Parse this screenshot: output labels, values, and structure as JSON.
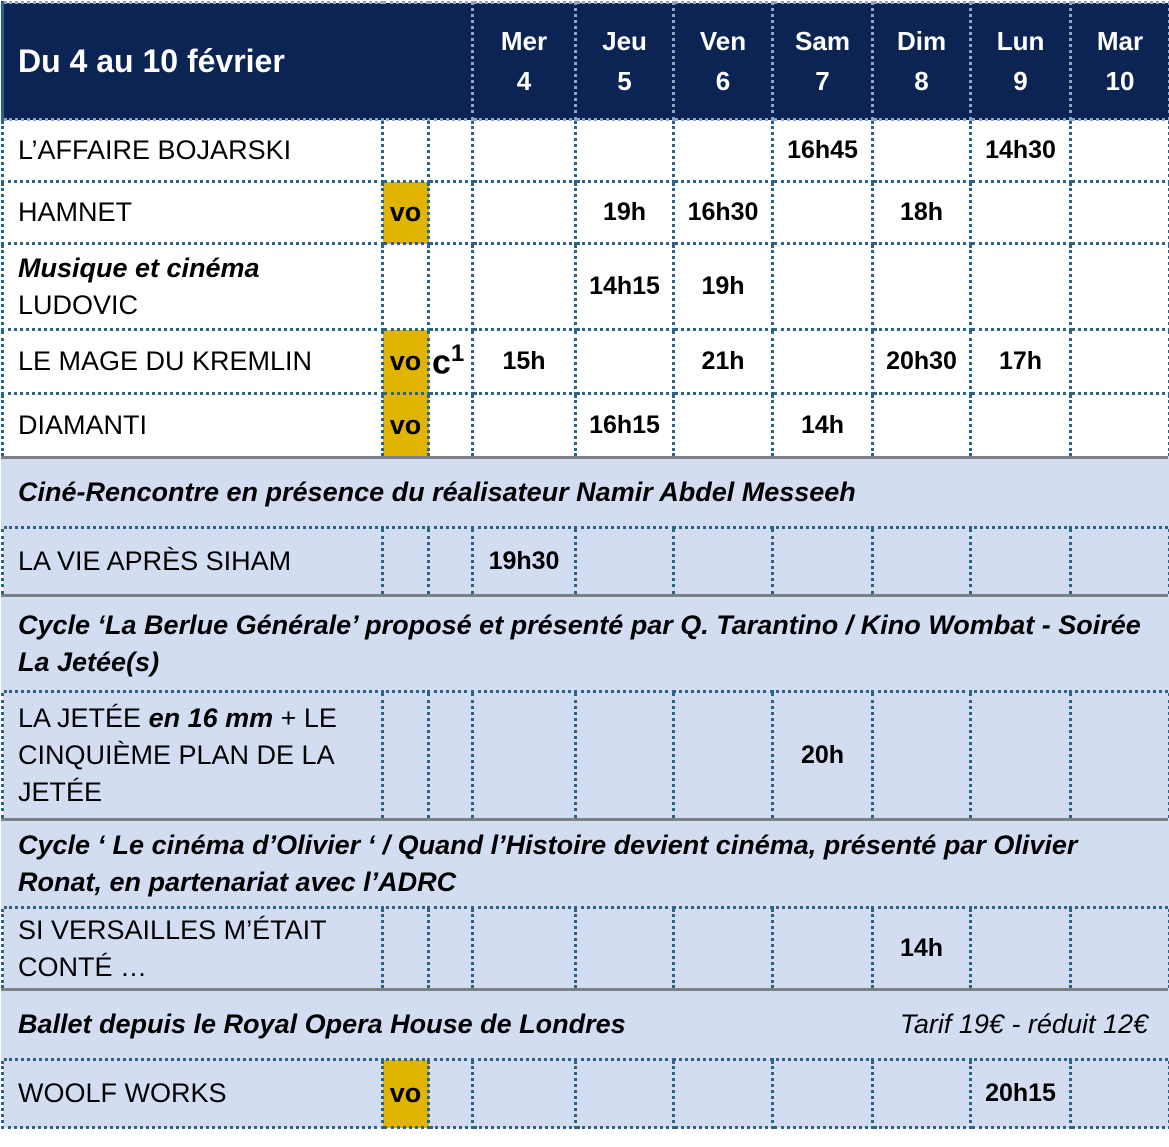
{
  "header": {
    "title": "Du 4 au 10 février",
    "days": [
      {
        "d": "Mer",
        "n": "4"
      },
      {
        "d": "Jeu",
        "n": "5"
      },
      {
        "d": "Ven",
        "n": "6"
      },
      {
        "d": "Sam",
        "n": "7"
      },
      {
        "d": "Dim",
        "n": "8"
      },
      {
        "d": "Lun",
        "n": "9"
      },
      {
        "d": "Mar",
        "n": "10"
      }
    ]
  },
  "colors": {
    "header_bg": "#0b2453",
    "vo_bg": "#e0b400",
    "section_bg": "#d3ddf1"
  },
  "rows": [
    {
      "type": "film",
      "h": 62,
      "title": [
        {
          "text": "L’AFFAIRE BOJARSKI"
        }
      ],
      "vo": "",
      "c": "",
      "times": [
        "",
        "",
        "",
        "16h45",
        "",
        "14h30",
        ""
      ]
    },
    {
      "type": "film",
      "h": 62,
      "title": [
        {
          "text": "HAMNET"
        }
      ],
      "vo": "vo",
      "c": "",
      "times": [
        "",
        "19h",
        "16h30",
        "",
        "18h",
        "",
        ""
      ]
    },
    {
      "type": "film",
      "h": 86,
      "title": [
        {
          "text": "Musique et cinéma",
          "bi": true
        },
        {
          "br": true
        },
        {
          "text": "LUDOVIC"
        }
      ],
      "vo": "",
      "c": "",
      "times": [
        "",
        "14h15",
        "19h",
        "",
        "",
        "",
        ""
      ]
    },
    {
      "type": "film",
      "h": 64,
      "title": [
        {
          "text": "LE MAGE DU KREMLIN"
        }
      ],
      "vo": "vo",
      "c": "c",
      "csup": "1",
      "times": [
        "15h",
        "",
        "21h",
        "",
        "20h30",
        "17h",
        ""
      ]
    },
    {
      "type": "film",
      "h": 64,
      "title": [
        {
          "text": "DIAMANTI"
        }
      ],
      "vo": "vo",
      "c": "",
      "times": [
        "",
        "16h15",
        "",
        "14h",
        "",
        "",
        ""
      ]
    },
    {
      "type": "section",
      "h": 70,
      "text": "Ciné-Rencontre en présence du réalisateur Namir Abdel Messeeh"
    },
    {
      "type": "film",
      "blue": true,
      "h": 68,
      "title": [
        {
          "text": "LA VIE APRÈS SIHAM"
        }
      ],
      "vo": "",
      "c": "",
      "times": [
        "19h30",
        "",
        "",
        "",
        "",
        "",
        ""
      ]
    },
    {
      "type": "section",
      "h": 96,
      "text": "Cycle ‘La Berlue Générale’ proposé et présenté par Q. Tarantino / Kino Wombat - Soirée La Jetée(s)"
    },
    {
      "type": "film",
      "blue": true,
      "h": 128,
      "title": [
        {
          "text": "LA JETÉE "
        },
        {
          "text": "en 16 mm",
          "bi": true
        },
        {
          "text": " + LE CINQUIÈME PLAN DE LA JETÉE"
        }
      ],
      "vo": "",
      "c": "",
      "times": [
        "",
        "",
        "",
        "20h",
        "",
        "",
        ""
      ]
    },
    {
      "type": "section",
      "h": 88,
      "text": "Cycle ‘ Le cinéma d’Olivier ‘ / Quand l’Histoire devient cinéma, présenté par Olivier Ronat, en partenariat avec l’ADRC"
    },
    {
      "type": "film",
      "blue": true,
      "h": 82,
      "title": [
        {
          "text": "SI VERSAILLES M’ÉTAIT CONTÉ …"
        }
      ],
      "vo": "",
      "c": "",
      "times": [
        "",
        "",
        "",
        "",
        "14h",
        "",
        ""
      ]
    },
    {
      "type": "section",
      "h": 70,
      "text": "Ballet depuis le Royal Opera House de Londres",
      "note": "Tarif 19€ - réduit 12€"
    },
    {
      "type": "film",
      "blue": true,
      "h": 68,
      "title": [
        {
          "text": "WOOLF WORKS"
        }
      ],
      "vo": "vo",
      "c": "",
      "times": [
        "",
        "",
        "",
        "",
        "",
        "20h15",
        ""
      ]
    }
  ]
}
